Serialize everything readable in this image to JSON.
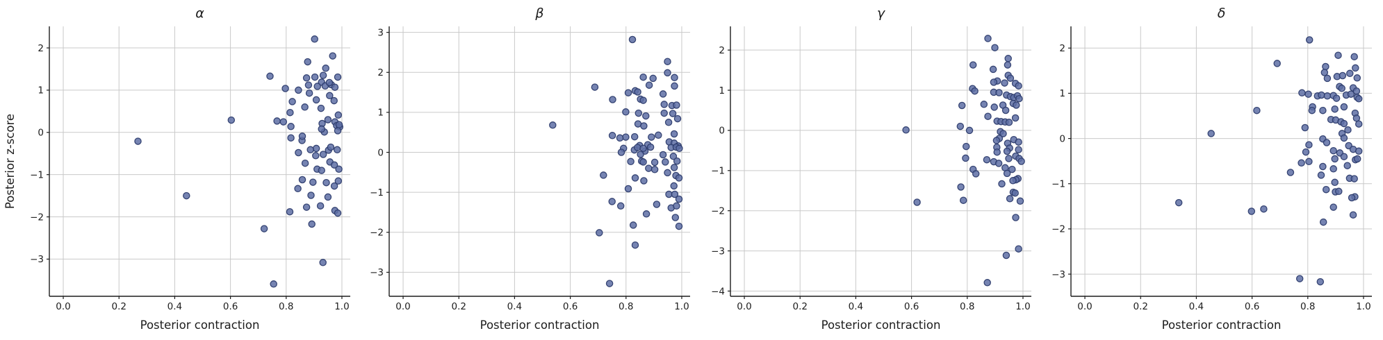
{
  "figure": {
    "shared_xlabel": "Posterior contraction",
    "shared_ylabel": "Posterior z-score"
  },
  "style": {
    "marker_fill": "#5e6fa5",
    "marker_edge": "#2d3c6d",
    "marker_fill_opacity": 0.85,
    "grid_color": "#c9c9c9",
    "spine_color": "#1c1c1c",
    "text_color": "#1c1c1c"
  },
  "chart_data": [
    {
      "type": "scatter",
      "id": "alpha",
      "title": "α",
      "xlabel": "Posterior contraction",
      "ylabel": "Posterior z-score",
      "xlim": [
        -0.05,
        1.03
      ],
      "ylim": [
        -3.88,
        2.51
      ],
      "xticks": [
        0.0,
        0.2,
        0.4,
        0.6,
        0.8,
        1.0
      ],
      "yticks": [
        2,
        1,
        0,
        -1,
        -2,
        -3
      ],
      "grid": true,
      "legend": null,
      "points": [
        [
          0.902,
          2.21
        ],
        [
          0.967,
          1.81
        ],
        [
          0.877,
          1.67
        ],
        [
          0.942,
          1.52
        ],
        [
          0.742,
          1.33
        ],
        [
          0.873,
          1.29
        ],
        [
          0.903,
          1.31
        ],
        [
          0.933,
          1.35
        ],
        [
          0.985,
          1.31
        ],
        [
          0.927,
          1.19
        ],
        [
          0.912,
          1.09
        ],
        [
          0.94,
          1.1
        ],
        [
          0.962,
          1.13
        ],
        [
          0.975,
          1.07
        ],
        [
          0.88,
          1.12
        ],
        [
          0.955,
          1.18
        ],
        [
          0.797,
          1.04
        ],
        [
          0.844,
          1.0
        ],
        [
          0.883,
          0.93
        ],
        [
          0.908,
          0.77
        ],
        [
          0.956,
          0.87
        ],
        [
          0.972,
          0.75
        ],
        [
          0.822,
          0.73
        ],
        [
          0.867,
          0.6
        ],
        [
          0.925,
          0.57
        ],
        [
          0.987,
          0.41
        ],
        [
          0.814,
          0.47
        ],
        [
          0.603,
          0.29
        ],
        [
          0.767,
          0.27
        ],
        [
          0.79,
          0.25
        ],
        [
          0.817,
          0.14
        ],
        [
          0.929,
          0.21
        ],
        [
          0.95,
          0.3
        ],
        [
          0.975,
          0.25
        ],
        [
          0.981,
          0.16
        ],
        [
          0.992,
          0.13
        ],
        [
          0.985,
          0.04
        ],
        [
          0.99,
          0.18
        ],
        [
          0.937,
          0.01
        ],
        [
          0.927,
          0.08
        ],
        [
          0.817,
          -0.13
        ],
        [
          0.857,
          -0.19
        ],
        [
          0.268,
          -0.21
        ],
        [
          0.858,
          -0.09
        ],
        [
          0.908,
          -0.38
        ],
        [
          0.887,
          -0.41
        ],
        [
          0.952,
          -0.42
        ],
        [
          0.844,
          -0.48
        ],
        [
          0.983,
          -0.41
        ],
        [
          0.906,
          -0.55
        ],
        [
          0.933,
          -0.52
        ],
        [
          0.96,
          -0.35
        ],
        [
          0.868,
          -0.73
        ],
        [
          0.957,
          -0.7
        ],
        [
          0.973,
          -0.77
        ],
        [
          0.911,
          -0.87
        ],
        [
          0.927,
          -0.9
        ],
        [
          0.989,
          -0.87
        ],
        [
          0.858,
          -1.12
        ],
        [
          0.896,
          -1.18
        ],
        [
          0.944,
          -1.19
        ],
        [
          0.973,
          -1.27
        ],
        [
          0.987,
          -1.15
        ],
        [
          0.842,
          -1.33
        ],
        [
          0.889,
          -1.49
        ],
        [
          0.95,
          -1.53
        ],
        [
          0.442,
          -1.5
        ],
        [
          0.873,
          -1.77
        ],
        [
          0.923,
          -1.74
        ],
        [
          0.813,
          -1.88
        ],
        [
          0.975,
          -1.85
        ],
        [
          0.985,
          -1.91
        ],
        [
          0.892,
          -2.17
        ],
        [
          0.721,
          -2.28
        ],
        [
          0.932,
          -3.08
        ],
        [
          0.755,
          -3.59
        ]
      ]
    },
    {
      "type": "scatter",
      "id": "beta",
      "title": "β",
      "xlabel": "Posterior contraction",
      "ylabel": "",
      "xlim": [
        -0.05,
        1.03
      ],
      "ylim": [
        -3.6,
        3.15
      ],
      "xticks": [
        0.0,
        0.2,
        0.4,
        0.6,
        0.8,
        1.0
      ],
      "yticks": [
        3,
        2,
        1,
        0,
        -1,
        -2,
        -3
      ],
      "grid": true,
      "legend": null,
      "points": [
        [
          0.823,
          2.82
        ],
        [
          0.949,
          2.27
        ],
        [
          0.949,
          1.99
        ],
        [
          0.862,
          1.88
        ],
        [
          0.897,
          1.85
        ],
        [
          0.974,
          1.87
        ],
        [
          0.883,
          1.68
        ],
        [
          0.974,
          1.66
        ],
        [
          0.688,
          1.63
        ],
        [
          0.833,
          1.54
        ],
        [
          0.842,
          1.51
        ],
        [
          0.808,
          1.49
        ],
        [
          0.933,
          1.46
        ],
        [
          0.752,
          1.32
        ],
        [
          0.852,
          1.33
        ],
        [
          0.862,
          1.3
        ],
        [
          0.937,
          1.2
        ],
        [
          0.965,
          1.17
        ],
        [
          0.981,
          1.18
        ],
        [
          0.799,
          1.01
        ],
        [
          0.845,
          0.98
        ],
        [
          0.871,
          0.91
        ],
        [
          0.937,
          0.98
        ],
        [
          0.968,
          0.97
        ],
        [
          0.985,
          0.84
        ],
        [
          0.953,
          0.75
        ],
        [
          0.843,
          0.71
        ],
        [
          0.864,
          0.66
        ],
        [
          0.537,
          0.68
        ],
        [
          0.799,
          0.38
        ],
        [
          0.751,
          0.42
        ],
        [
          0.778,
          0.36
        ],
        [
          0.831,
          0.39
        ],
        [
          0.891,
          0.38
        ],
        [
          0.916,
          0.43
        ],
        [
          0.973,
          0.46
        ],
        [
          0.955,
          0.26
        ],
        [
          0.973,
          0.23
        ],
        [
          0.849,
          0.17
        ],
        [
          0.878,
          0.19
        ],
        [
          0.83,
          0.06
        ],
        [
          0.868,
          0.03
        ],
        [
          0.962,
          0.12
        ],
        [
          0.987,
          0.16
        ],
        [
          0.791,
          0.1
        ],
        [
          0.783,
          0.0
        ],
        [
          0.841,
          0.12
        ],
        [
          0.862,
          0.1
        ],
        [
          0.888,
          0.13
        ],
        [
          0.98,
          0.13
        ],
        [
          0.991,
          0.1
        ],
        [
          0.852,
          -0.05
        ],
        [
          0.933,
          -0.06
        ],
        [
          0.97,
          -0.1
        ],
        [
          0.817,
          -0.23
        ],
        [
          0.856,
          -0.22
        ],
        [
          0.862,
          -0.24
        ],
        [
          0.903,
          -0.25
        ],
        [
          0.941,
          -0.24
        ],
        [
          0.983,
          -0.22
        ],
        [
          0.719,
          -0.57
        ],
        [
          0.833,
          -0.64
        ],
        [
          0.864,
          -0.71
        ],
        [
          0.881,
          -0.4
        ],
        [
          0.903,
          -0.43
        ],
        [
          0.949,
          -0.51
        ],
        [
          0.973,
          -0.38
        ],
        [
          0.979,
          -0.58
        ],
        [
          0.99,
          -0.64
        ],
        [
          0.972,
          -0.84
        ],
        [
          0.808,
          -0.91
        ],
        [
          0.954,
          -1.05
        ],
        [
          0.975,
          -1.05
        ],
        [
          0.99,
          -1.17
        ],
        [
          0.75,
          -1.23
        ],
        [
          0.781,
          -1.34
        ],
        [
          0.91,
          -1.3
        ],
        [
          0.962,
          -1.39
        ],
        [
          0.981,
          -1.34
        ],
        [
          0.873,
          -1.54
        ],
        [
          0.977,
          -1.63
        ],
        [
          0.826,
          -1.82
        ],
        [
          0.99,
          -1.85
        ],
        [
          0.704,
          -2.01
        ],
        [
          0.833,
          -2.32
        ],
        [
          0.741,
          -3.28
        ]
      ]
    },
    {
      "type": "scatter",
      "id": "gamma",
      "title": "γ",
      "xlabel": "Posterior contraction",
      "ylabel": "",
      "xlim": [
        -0.05,
        1.03
      ],
      "ylim": [
        -4.13,
        2.59
      ],
      "xticks": [
        0.0,
        0.2,
        0.4,
        0.6,
        0.8,
        1.0
      ],
      "yticks": [
        2,
        1,
        0,
        -1,
        -2,
        -3,
        -4
      ],
      "grid": true,
      "legend": null,
      "points": [
        [
          0.874,
          2.29
        ],
        [
          0.899,
          2.06
        ],
        [
          0.947,
          1.79
        ],
        [
          0.945,
          1.63
        ],
        [
          0.821,
          1.63
        ],
        [
          0.893,
          1.52
        ],
        [
          0.947,
          1.37
        ],
        [
          0.955,
          1.3
        ],
        [
          0.908,
          1.23
        ],
        [
          0.895,
          1.2
        ],
        [
          0.934,
          1.18
        ],
        [
          0.973,
          1.17
        ],
        [
          0.984,
          1.11
        ],
        [
          0.819,
          1.04
        ],
        [
          0.827,
          0.98
        ],
        [
          0.895,
          0.95
        ],
        [
          0.914,
          0.94
        ],
        [
          0.941,
          0.88
        ],
        [
          0.955,
          0.84
        ],
        [
          0.967,
          0.82
        ],
        [
          0.98,
          0.86
        ],
        [
          0.986,
          0.79
        ],
        [
          0.965,
          0.67
        ],
        [
          0.976,
          0.63
        ],
        [
          0.781,
          0.62
        ],
        [
          0.86,
          0.65
        ],
        [
          0.897,
          0.58
        ],
        [
          0.928,
          0.63
        ],
        [
          0.938,
          0.5
        ],
        [
          0.874,
          0.35
        ],
        [
          0.907,
          0.23
        ],
        [
          0.921,
          0.22
        ],
        [
          0.936,
          0.21
        ],
        [
          0.95,
          0.2
        ],
        [
          0.973,
          0.31
        ],
        [
          0.775,
          0.1
        ],
        [
          0.58,
          0.01
        ],
        [
          0.808,
          0.0
        ],
        [
          0.919,
          -0.03
        ],
        [
          0.929,
          -0.08
        ],
        [
          0.915,
          -0.2
        ],
        [
          0.905,
          -0.25
        ],
        [
          0.967,
          -0.23
        ],
        [
          0.984,
          -0.29
        ],
        [
          0.945,
          -0.32
        ],
        [
          0.796,
          -0.4
        ],
        [
          0.906,
          -0.42
        ],
        [
          0.952,
          -0.44
        ],
        [
          0.984,
          -0.48
        ],
        [
          0.794,
          -0.69
        ],
        [
          0.87,
          -0.73
        ],
        [
          0.895,
          -0.78
        ],
        [
          0.907,
          -0.54
        ],
        [
          0.913,
          -0.82
        ],
        [
          0.943,
          -0.52
        ],
        [
          0.949,
          -0.7
        ],
        [
          0.974,
          -0.64
        ],
        [
          0.986,
          -0.7
        ],
        [
          0.994,
          -0.77
        ],
        [
          0.936,
          -0.93
        ],
        [
          0.961,
          -0.97
        ],
        [
          0.821,
          -0.97
        ],
        [
          0.831,
          -1.08
        ],
        [
          0.943,
          -1.07
        ],
        [
          0.982,
          -1.2
        ],
        [
          0.975,
          -1.23
        ],
        [
          0.924,
          -1.33
        ],
        [
          0.964,
          -1.25
        ],
        [
          0.777,
          -1.41
        ],
        [
          0.965,
          -1.54
        ],
        [
          0.972,
          -1.56
        ],
        [
          0.953,
          -1.7
        ],
        [
          0.786,
          -1.74
        ],
        [
          0.62,
          -1.79
        ],
        [
          0.99,
          -1.76
        ],
        [
          0.974,
          -2.17
        ],
        [
          0.984,
          -2.95
        ],
        [
          0.94,
          -3.11
        ],
        [
          0.872,
          -3.79
        ]
      ]
    },
    {
      "type": "scatter",
      "id": "delta",
      "title": "δ",
      "xlabel": "Posterior contraction",
      "ylabel": "",
      "xlim": [
        -0.05,
        1.03
      ],
      "ylim": [
        -3.49,
        2.48
      ],
      "xticks": [
        0.0,
        0.2,
        0.4,
        0.6,
        0.8,
        1.0
      ],
      "yticks": [
        2,
        1,
        0,
        -1,
        -2,
        -3
      ],
      "grid": true,
      "legend": null,
      "points": [
        [
          0.806,
          2.18
        ],
        [
          0.909,
          1.84
        ],
        [
          0.967,
          1.81
        ],
        [
          0.69,
          1.66
        ],
        [
          0.864,
          1.59
        ],
        [
          0.971,
          1.56
        ],
        [
          0.86,
          1.46
        ],
        [
          0.951,
          1.44
        ],
        [
          0.905,
          1.37
        ],
        [
          0.925,
          1.39
        ],
        [
          0.87,
          1.33
        ],
        [
          0.977,
          1.34
        ],
        [
          0.914,
          1.15
        ],
        [
          0.922,
          1.11
        ],
        [
          0.963,
          1.12
        ],
        [
          0.975,
          1.05
        ],
        [
          0.779,
          1.01
        ],
        [
          0.802,
          0.98
        ],
        [
          0.835,
          0.94
        ],
        [
          0.849,
          0.96
        ],
        [
          0.87,
          0.94
        ],
        [
          0.892,
          0.95
        ],
        [
          0.903,
          0.89
        ],
        [
          0.938,
          0.96
        ],
        [
          0.955,
          0.98
        ],
        [
          0.977,
          0.91
        ],
        [
          0.983,
          0.88
        ],
        [
          0.817,
          0.7
        ],
        [
          0.815,
          0.62
        ],
        [
          0.854,
          0.62
        ],
        [
          0.617,
          0.62
        ],
        [
          0.897,
          0.65
        ],
        [
          0.93,
          0.7
        ],
        [
          0.97,
          0.56
        ],
        [
          0.883,
          0.42
        ],
        [
          0.9,
          0.41
        ],
        [
          0.919,
          0.37
        ],
        [
          0.93,
          0.33
        ],
        [
          0.975,
          0.45
        ],
        [
          0.983,
          0.32
        ],
        [
          0.79,
          0.24
        ],
        [
          0.944,
          0.19
        ],
        [
          0.453,
          0.11
        ],
        [
          0.923,
          0.11
        ],
        [
          0.93,
          0.01
        ],
        [
          0.854,
          -0.01
        ],
        [
          0.868,
          -0.09
        ],
        [
          0.804,
          -0.14
        ],
        [
          0.892,
          -0.27
        ],
        [
          0.947,
          -0.16
        ],
        [
          0.963,
          -0.24
        ],
        [
          0.983,
          -0.28
        ],
        [
          0.793,
          -0.3
        ],
        [
          0.915,
          -0.32
        ],
        [
          0.93,
          -0.4
        ],
        [
          0.897,
          -0.45
        ],
        [
          0.971,
          -0.47
        ],
        [
          0.978,
          -0.45
        ],
        [
          0.777,
          -0.54
        ],
        [
          0.804,
          -0.51
        ],
        [
          0.854,
          -0.62
        ],
        [
          0.942,
          -0.6
        ],
        [
          0.892,
          -0.67
        ],
        [
          0.738,
          -0.75
        ],
        [
          0.848,
          -0.81
        ],
        [
          0.95,
          -0.88
        ],
        [
          0.967,
          -0.89
        ],
        [
          0.897,
          -0.97
        ],
        [
          0.866,
          -1.13
        ],
        [
          0.899,
          -1.18
        ],
        [
          0.911,
          -1.17
        ],
        [
          0.969,
          -1.29
        ],
        [
          0.958,
          -1.31
        ],
        [
          0.337,
          -1.42
        ],
        [
          0.892,
          -1.52
        ],
        [
          0.642,
          -1.56
        ],
        [
          0.598,
          -1.61
        ],
        [
          0.963,
          -1.69
        ],
        [
          0.856,
          -1.85
        ],
        [
          0.771,
          -3.1
        ],
        [
          0.845,
          -3.17
        ]
      ]
    }
  ]
}
